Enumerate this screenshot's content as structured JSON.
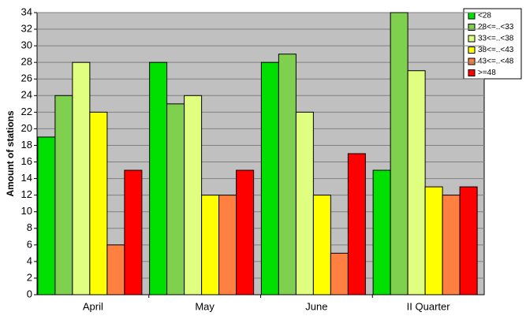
{
  "chart_data": {
    "type": "bar",
    "y_label": "Amount of stations",
    "categories": [
      "April",
      "May",
      "June",
      "II Quarter"
    ],
    "series": [
      {
        "name": "<28",
        "color": "#00e000",
        "values": [
          19,
          28,
          28,
          15
        ]
      },
      {
        "name": "28<=..<33",
        "color": "#80d050",
        "values": [
          24,
          23,
          29,
          34
        ]
      },
      {
        "name": "33<=..<38",
        "color": "#e0ff80",
        "values": [
          28,
          24,
          22,
          27
        ]
      },
      {
        "name": "38<=..<43",
        "color": "#ffff00",
        "values": [
          22,
          12,
          12,
          13
        ]
      },
      {
        "name": "43<=..<48",
        "color": "#ff8040",
        "values": [
          6,
          12,
          5,
          12
        ]
      },
      {
        "name": ">=48",
        "color": "#ff0000",
        "values": [
          15,
          15,
          17,
          13
        ]
      }
    ],
    "ylim": [
      0,
      34
    ],
    "yticks": [
      0,
      2,
      4,
      6,
      8,
      10,
      12,
      14,
      16,
      18,
      20,
      22,
      24,
      26,
      28,
      30,
      32,
      34
    ],
    "grid": true,
    "legend": "top-right",
    "background": "#c0c0c0"
  }
}
